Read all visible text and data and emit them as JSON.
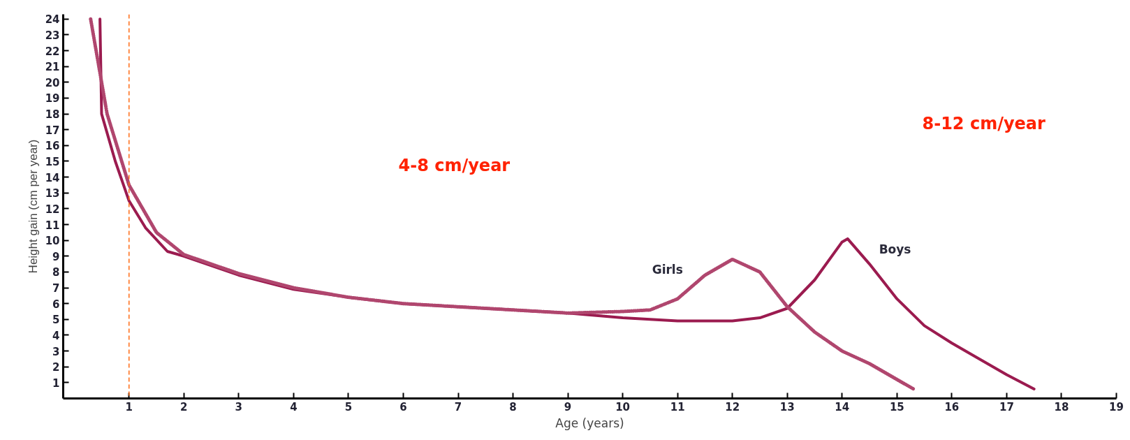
{
  "chart_data": {
    "type": "line",
    "xlabel": "Age (years)",
    "ylabel": "Height gain (cm per year)",
    "xlim": [
      -0.2,
      19
    ],
    "ylim": [
      0,
      24.3
    ],
    "xticks": [
      1,
      2,
      3,
      4,
      5,
      6,
      7,
      8,
      9,
      10,
      11,
      12,
      13,
      14,
      15,
      16,
      17,
      18,
      19
    ],
    "yticks": [
      1,
      2,
      3,
      4,
      5,
      6,
      7,
      8,
      9,
      10,
      11,
      12,
      13,
      14,
      15,
      16,
      17,
      18,
      19,
      20,
      21,
      22,
      23,
      24
    ],
    "grid": false,
    "series": [
      {
        "name": "Boys",
        "color": "#9b1b4f",
        "line_style": "solid",
        "x": [
          0.47,
          0.5,
          0.75,
          1,
          1.3,
          1.7,
          2,
          3,
          4,
          5,
          6,
          7,
          8,
          9,
          10,
          11,
          12,
          12.5,
          13,
          13.5,
          14,
          14.1,
          14.5,
          15,
          15.5,
          16,
          17,
          17.5
        ],
        "values": [
          24,
          18,
          15,
          12.5,
          10.8,
          9.3,
          9.0,
          7.8,
          6.9,
          6.4,
          6.0,
          5.8,
          5.6,
          5.4,
          5.1,
          4.9,
          4.9,
          5.1,
          5.7,
          7.5,
          9.9,
          10.1,
          8.5,
          6.3,
          4.6,
          3.5,
          1.5,
          0.6
        ]
      },
      {
        "name": "Girls",
        "color": "#b0466e",
        "line_style": "dotted",
        "x": [
          0.3,
          0.6,
          1,
          1.5,
          2,
          3,
          4,
          5,
          6,
          7,
          8,
          9,
          10,
          10.5,
          11,
          11.5,
          12,
          12.5,
          13,
          13.5,
          14,
          14.5,
          15,
          15.3
        ],
        "values": [
          24,
          18,
          13.5,
          10.5,
          9.1,
          7.9,
          7.0,
          6.4,
          6.0,
          5.8,
          5.6,
          5.4,
          5.5,
          5.6,
          6.3,
          7.8,
          8.8,
          8.0,
          5.8,
          4.2,
          3.0,
          2.2,
          1.2,
          0.6
        ]
      }
    ],
    "ref_lines": [
      {
        "axis": "x",
        "value": 1,
        "color": "#ff6a13",
        "line_style": "dashed"
      }
    ],
    "annotations": [
      "4-8 cm/year",
      "8-12 cm/year"
    ]
  }
}
